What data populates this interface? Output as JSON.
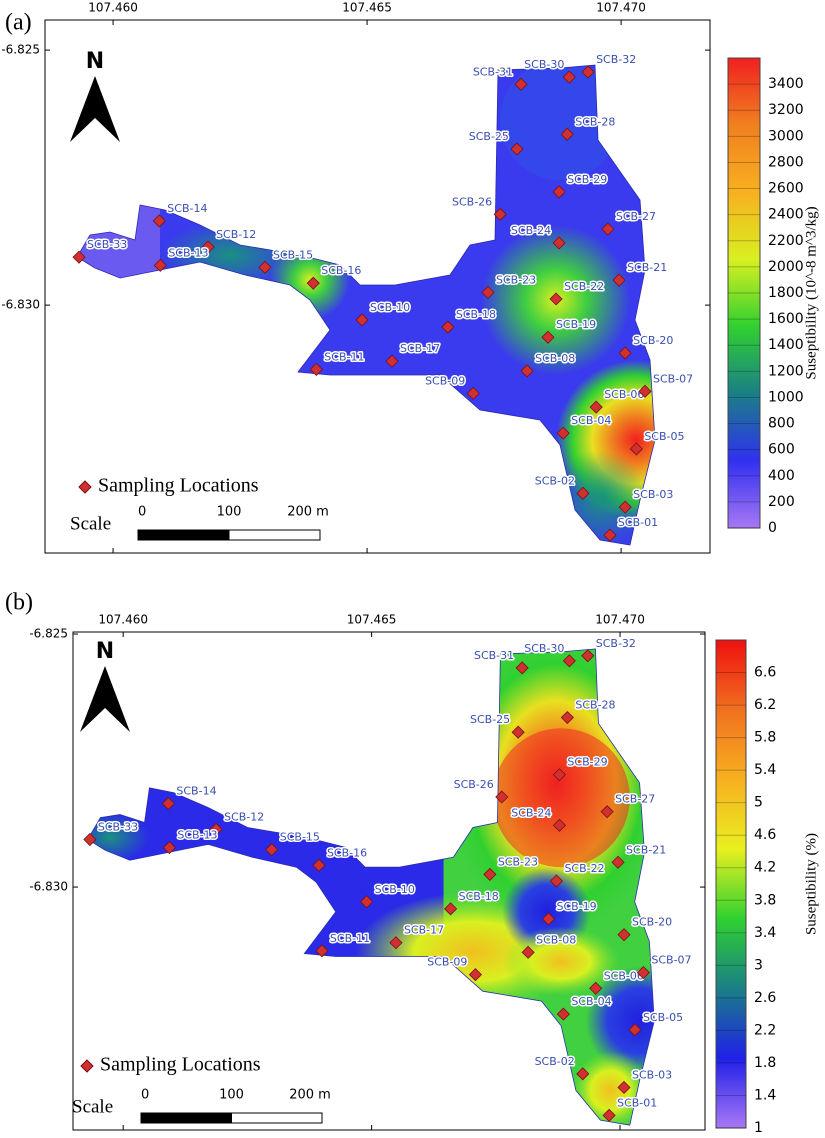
{
  "sampling_locations": [
    {
      "name": "SCB-01",
      "lon": 107.46978,
      "lat": -6.83451
    },
    {
      "name": "SCB-02",
      "lon": 107.46925,
      "lat": -6.83369
    },
    {
      "name": "SCB-03",
      "lon": 107.47008,
      "lat": -6.83396
    },
    {
      "name": "SCB-04",
      "lon": 107.46886,
      "lat": -6.83251
    },
    {
      "name": "SCB-05",
      "lon": 107.4703,
      "lat": -6.83282
    },
    {
      "name": "SCB-06",
      "lon": 107.46951,
      "lat": -6.832
    },
    {
      "name": "SCB-07",
      "lon": 107.47047,
      "lat": -6.83169
    },
    {
      "name": "SCB-08",
      "lon": 107.46815,
      "lat": -6.83129
    },
    {
      "name": "SCB-09",
      "lon": 107.46709,
      "lat": -6.83173
    },
    {
      "name": "SCB-10",
      "lon": 107.4649,
      "lat": -6.83029
    },
    {
      "name": "SCB-11",
      "lon": 107.464,
      "lat": -6.83126
    },
    {
      "name": "SCB-12",
      "lon": 107.46187,
      "lat": -6.82886
    },
    {
      "name": "SCB-13",
      "lon": 107.46093,
      "lat": -6.82922
    },
    {
      "name": "SCB-14",
      "lon": 107.46091,
      "lat": -6.82835
    },
    {
      "name": "SCB-15",
      "lon": 107.46299,
      "lat": -6.82926
    },
    {
      "name": "SCB-16",
      "lon": 107.46394,
      "lat": -6.82957
    },
    {
      "name": "SCB-17",
      "lon": 107.46549,
      "lat": -6.8311
    },
    {
      "name": "SCB-18",
      "lon": 107.46659,
      "lat": -6.83043
    },
    {
      "name": "SCB-19",
      "lon": 107.46856,
      "lat": -6.83063
    },
    {
      "name": "SCB-20",
      "lon": 107.47008,
      "lat": -6.83094
    },
    {
      "name": "SCB-21",
      "lon": 107.46996,
      "lat": -6.82951
    },
    {
      "name": "SCB-22",
      "lon": 107.46872,
      "lat": -6.82988
    },
    {
      "name": "SCB-23",
      "lon": 107.46738,
      "lat": -6.82975
    },
    {
      "name": "SCB-24",
      "lon": 107.46878,
      "lat": -6.82878
    },
    {
      "name": "SCB-25",
      "lon": 107.46795,
      "lat": -6.82694
    },
    {
      "name": "SCB-26",
      "lon": 107.46762,
      "lat": -6.82822
    },
    {
      "name": "SCB-27",
      "lon": 107.46974,
      "lat": -6.82851
    },
    {
      "name": "SCB-28",
      "lon": 107.46894,
      "lat": -6.82665
    },
    {
      "name": "SCB-29",
      "lon": 107.46878,
      "lat": -6.82778
    },
    {
      "name": "SCB-30",
      "lon": 107.46898,
      "lat": -6.82553
    },
    {
      "name": "SCB-31",
      "lon": 107.46803,
      "lat": -6.82567
    },
    {
      "name": "SCB-32",
      "lon": 107.46935,
      "lat": -6.82543
    },
    {
      "name": "SCB-33",
      "lon": 107.45933,
      "lat": -6.82906
    }
  ],
  "panels": [
    {
      "label": "(a)",
      "xlim": [
        107.45866,
        107.47175
      ],
      "xticks": [
        {
          "value": 107.46,
          "label": "107.460"
        },
        107.465,
        {
          "value": 107.47,
          "label": "107.470"
        }
      ],
      "ylim": [
        -6.82441,
        -6.83486
      ],
      "yticks": [
        -6.825,
        {
          "value": -6.83,
          "label": "-6.830"
        }
      ],
      "north": "N",
      "legend": "Sampling Locations",
      "scale_bar": {
        "title": "Scale",
        "labels": [
          "0",
          "100",
          "200 m"
        ]
      },
      "colorbar": {
        "title": "Suseptibility (10^-8 m^3/kg)",
        "range": [
          0,
          3600
        ],
        "ticks": [
          0,
          200,
          400,
          600,
          800,
          1000,
          1200,
          1400,
          1600,
          1800,
          2000,
          2200,
          2400,
          2600,
          2800,
          3000,
          3200,
          3400
        ],
        "colors": [
          "#a878f5",
          "#3030f0",
          "#1a7f86",
          "#30d030",
          "#d8f020",
          "#f8b020",
          "#f08020",
          "#f02020"
        ]
      }
    },
    {
      "label": "(b)",
      "xlim": [
        107.45899,
        107.47171
      ],
      "xticks": [
        {
          "value": 107.46,
          "label": "107.460"
        },
        107.465,
        {
          "value": 107.47,
          "label": "107.470"
        }
      ],
      "ylim": [
        -6.82496,
        -6.8348
      ],
      "yticks": [
        -6.825,
        {
          "value": -6.83,
          "label": "-6.830"
        }
      ],
      "north": "N",
      "legend": "Sampling Locations",
      "scale_bar": {
        "title": "Scale",
        "labels": [
          "0",
          "100",
          "200 m"
        ]
      },
      "colorbar": {
        "title": "Suseptibility (%)",
        "range": [
          1,
          7
        ],
        "ticks": [
          1,
          1.4,
          1.8,
          2.2,
          2.6,
          3,
          3.4,
          3.8,
          4.2,
          4.6,
          5,
          5.4,
          5.8,
          6.2,
          6.6
        ],
        "colors": [
          "#a878f5",
          "#2020e8",
          "#1a7f86",
          "#30d030",
          "#e8f020",
          "#f8b020",
          "#f07020",
          "#f01010"
        ]
      }
    }
  ]
}
